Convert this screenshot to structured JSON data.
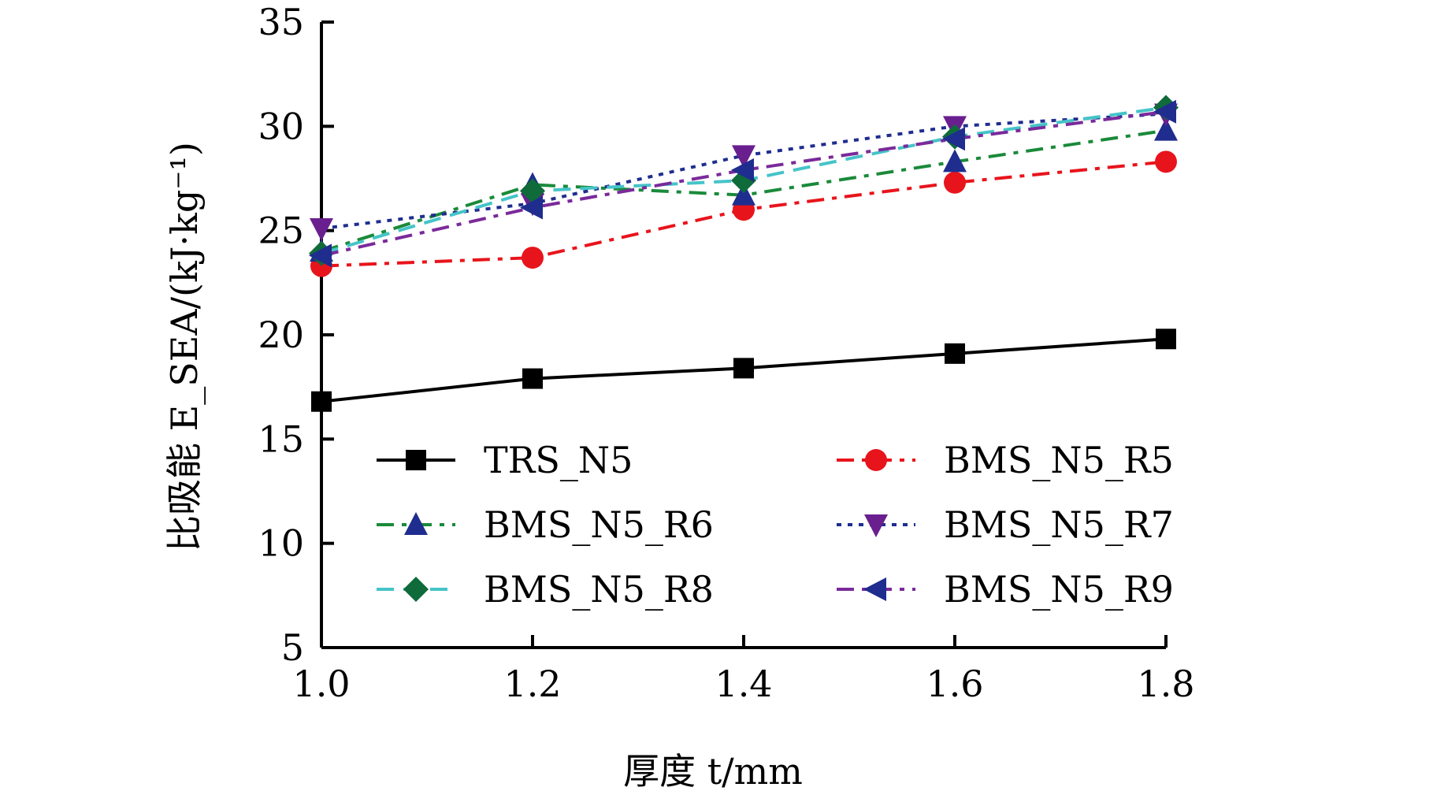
{
  "chart_data": {
    "type": "line",
    "x": [
      1.0,
      1.2,
      1.4,
      1.6,
      1.8
    ],
    "x_tick_labels": [
      "1.0",
      "1.2",
      "1.4",
      "1.6",
      "1.8"
    ],
    "y_tick_labels": [
      "5",
      "10",
      "15",
      "20",
      "25",
      "30",
      "35"
    ],
    "y_ticks": [
      5,
      10,
      15,
      20,
      25,
      30,
      35
    ],
    "xlim": [
      1.0,
      1.8
    ],
    "ylim": [
      5,
      35
    ],
    "xlabel": "厚度 t/mm",
    "ylabel": "比吸能 E_SEA/(kJ·kg⁻¹)",
    "grid": false,
    "legend_placement": "lower-center, two columns",
    "series": [
      {
        "name": "TRS_N5",
        "color": "#000000",
        "dash": "solid",
        "marker": "square",
        "values": [
          16.8,
          17.9,
          18.4,
          19.1,
          19.8
        ]
      },
      {
        "name": "BMS_N5_R5",
        "color": "#e8141c",
        "dash": "dashdot",
        "marker": "circle",
        "values": [
          23.3,
          23.7,
          26.0,
          27.3,
          28.3
        ]
      },
      {
        "name": "BMS_N5_R6",
        "color": "#1a8a3a",
        "dash": "dashdot",
        "marker": "triangle-up",
        "marker_color": "#1f2d8f",
        "values": [
          24.0,
          27.2,
          26.7,
          28.3,
          29.8
        ]
      },
      {
        "name": "BMS_N5_R7",
        "color": "#1f2d8f",
        "dash": "dot",
        "marker": "triangle-down",
        "marker_color": "#6a1f8f",
        "values": [
          25.1,
          26.3,
          28.6,
          30.0,
          30.6
        ]
      },
      {
        "name": "BMS_N5_R8",
        "color": "#45c4c8",
        "dash": "dash",
        "marker": "diamond",
        "marker_color": "#0f6b3a",
        "values": [
          23.9,
          26.9,
          27.4,
          29.5,
          30.9
        ]
      },
      {
        "name": "BMS_N5_R9",
        "color": "#7a2a9a",
        "dash": "dashdot",
        "marker": "triangle-left",
        "marker_color": "#1f2d8f",
        "values": [
          23.8,
          26.1,
          27.9,
          29.4,
          30.7
        ]
      }
    ]
  }
}
